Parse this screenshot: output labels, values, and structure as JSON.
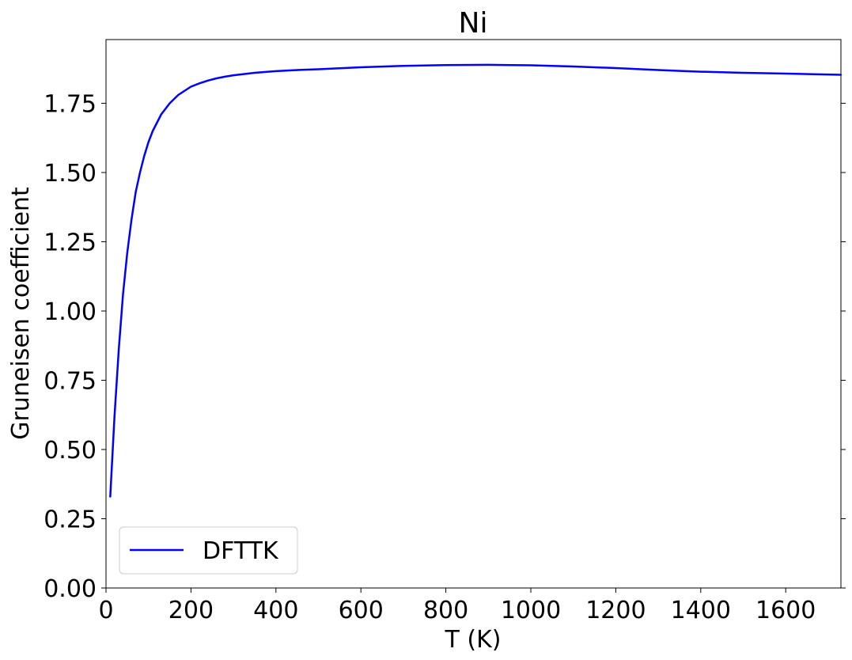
{
  "chart_data": {
    "type": "line",
    "title": "Ni",
    "xlabel": "T (K)",
    "ylabel": "Gruneisen coefficient",
    "xlim": [
      0,
      1730
    ],
    "ylim": [
      0,
      1.98
    ],
    "x_ticks": [
      0,
      200,
      400,
      600,
      800,
      1000,
      1200,
      1400,
      1600
    ],
    "x_tick_labels": [
      "0",
      "200",
      "400",
      "600",
      "800",
      "1000",
      "1200",
      "1400",
      "1600"
    ],
    "y_ticks": [
      0,
      0.25,
      0.5,
      0.75,
      1.0,
      1.25,
      1.5,
      1.75
    ],
    "y_tick_labels": [
      "0.00",
      "0.25",
      "0.50",
      "0.75",
      "1.00",
      "1.25",
      "1.50",
      "1.75"
    ],
    "grid": false,
    "legend": {
      "placement": "lower-left",
      "entries": [
        "DFTTK"
      ]
    },
    "series": [
      {
        "name": "DFTTK",
        "color": "#0000ff",
        "x": [
          10,
          20,
          30,
          40,
          50,
          60,
          70,
          80,
          90,
          100,
          110,
          120,
          130,
          140,
          150,
          160,
          170,
          180,
          190,
          200,
          220,
          240,
          260,
          280,
          300,
          350,
          400,
          450,
          500,
          600,
          700,
          800,
          900,
          1000,
          1100,
          1200,
          1300,
          1400,
          1500,
          1600,
          1730
        ],
        "y": [
          0.33,
          0.62,
          0.86,
          1.06,
          1.21,
          1.33,
          1.43,
          1.5,
          1.56,
          1.61,
          1.65,
          1.68,
          1.71,
          1.73,
          1.75,
          1.765,
          1.78,
          1.79,
          1.8,
          1.81,
          1.822,
          1.832,
          1.84,
          1.846,
          1.851,
          1.86,
          1.866,
          1.87,
          1.873,
          1.88,
          1.885,
          1.888,
          1.889,
          1.887,
          1.883,
          1.877,
          1.87,
          1.864,
          1.86,
          1.857,
          1.853
        ]
      }
    ]
  }
}
